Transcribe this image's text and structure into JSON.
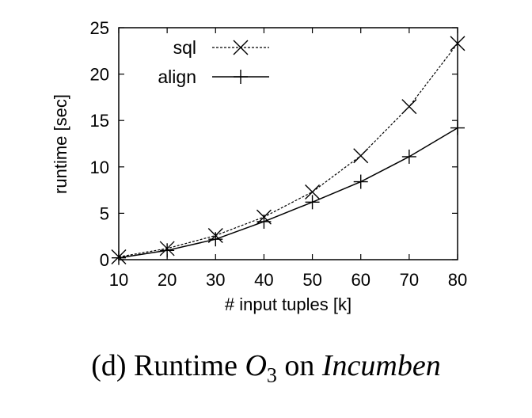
{
  "chart_data": {
    "type": "line",
    "xlabel": "# input tuples [k]",
    "ylabel": "runtime [sec]",
    "x": [
      10,
      20,
      30,
      40,
      50,
      60,
      70,
      80
    ],
    "xlim": [
      10,
      80
    ],
    "ylim": [
      0,
      25
    ],
    "xticks": [
      "10",
      "20",
      "30",
      "40",
      "50",
      "60",
      "70",
      "80"
    ],
    "yticks": [
      "0",
      "5",
      "10",
      "15",
      "20",
      "25"
    ],
    "grid": false,
    "legend_position": "top-left",
    "series": [
      {
        "name": "sql",
        "marker": "x",
        "line": "dashed",
        "values": [
          0.3,
          1.2,
          2.6,
          4.6,
          7.3,
          11.2,
          16.5,
          23.3
        ]
      },
      {
        "name": "align",
        "marker": "+",
        "line": "solid",
        "values": [
          0.2,
          1.0,
          2.2,
          4.1,
          6.2,
          8.4,
          11.1,
          14.2
        ]
      }
    ]
  },
  "caption": {
    "prefix": "(d) Runtime ",
    "math_symbol": "O",
    "math_subscript": "3",
    "middle": " on ",
    "dataset": "Incumben"
  }
}
